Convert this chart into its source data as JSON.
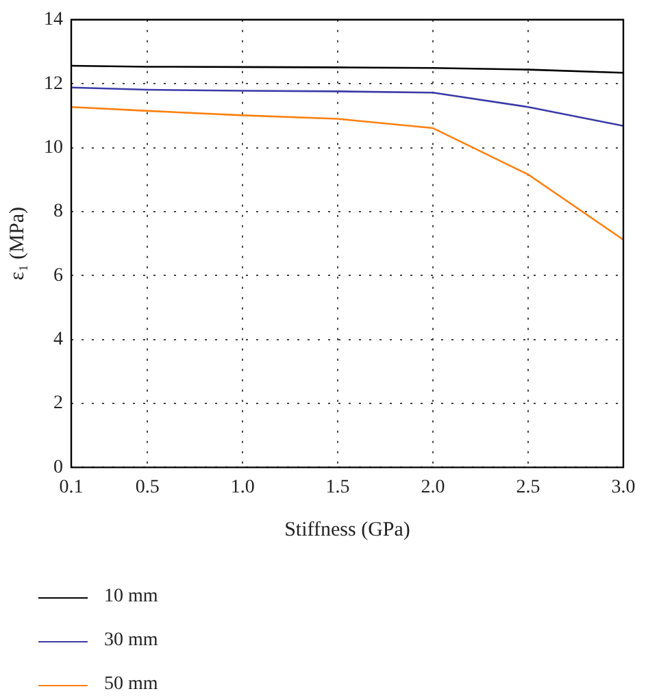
{
  "chart_data": {
    "type": "line",
    "xlabel": "Stiffness (GPa)",
    "ylabel": "ε₁ (MPa)",
    "x": [
      0.1,
      0.5,
      1.0,
      1.5,
      2.0,
      2.5,
      3.0
    ],
    "series": [
      {
        "name": "10 mm",
        "color": "#000000",
        "values": [
          12.56,
          12.53,
          12.52,
          12.51,
          12.49,
          12.44,
          12.34
        ]
      },
      {
        "name": "30 mm",
        "color": "#3a3aa8",
        "values": [
          11.88,
          11.81,
          11.78,
          11.76,
          11.72,
          11.27,
          10.68
        ]
      },
      {
        "name": "50 mm",
        "color": "#ff7f0e",
        "values": [
          11.27,
          11.15,
          11.01,
          10.9,
          10.61,
          9.16,
          7.12
        ]
      }
    ],
    "xlim": [
      0.1,
      3.0
    ],
    "ylim": [
      0,
      14
    ],
    "xticks": [
      0.1,
      0.5,
      {
        "value": 1.0,
        "label": "1.0"
      },
      1.5,
      {
        "value": 2.0,
        "label": "2.0"
      },
      2.5,
      {
        "value": 3.0,
        "label": "3.0"
      }
    ],
    "yticks": [
      0,
      2,
      4,
      6,
      8,
      10,
      12,
      14
    ],
    "grid": true,
    "legend": "bottom",
    "marker": "none",
    "line_style": "solid"
  }
}
